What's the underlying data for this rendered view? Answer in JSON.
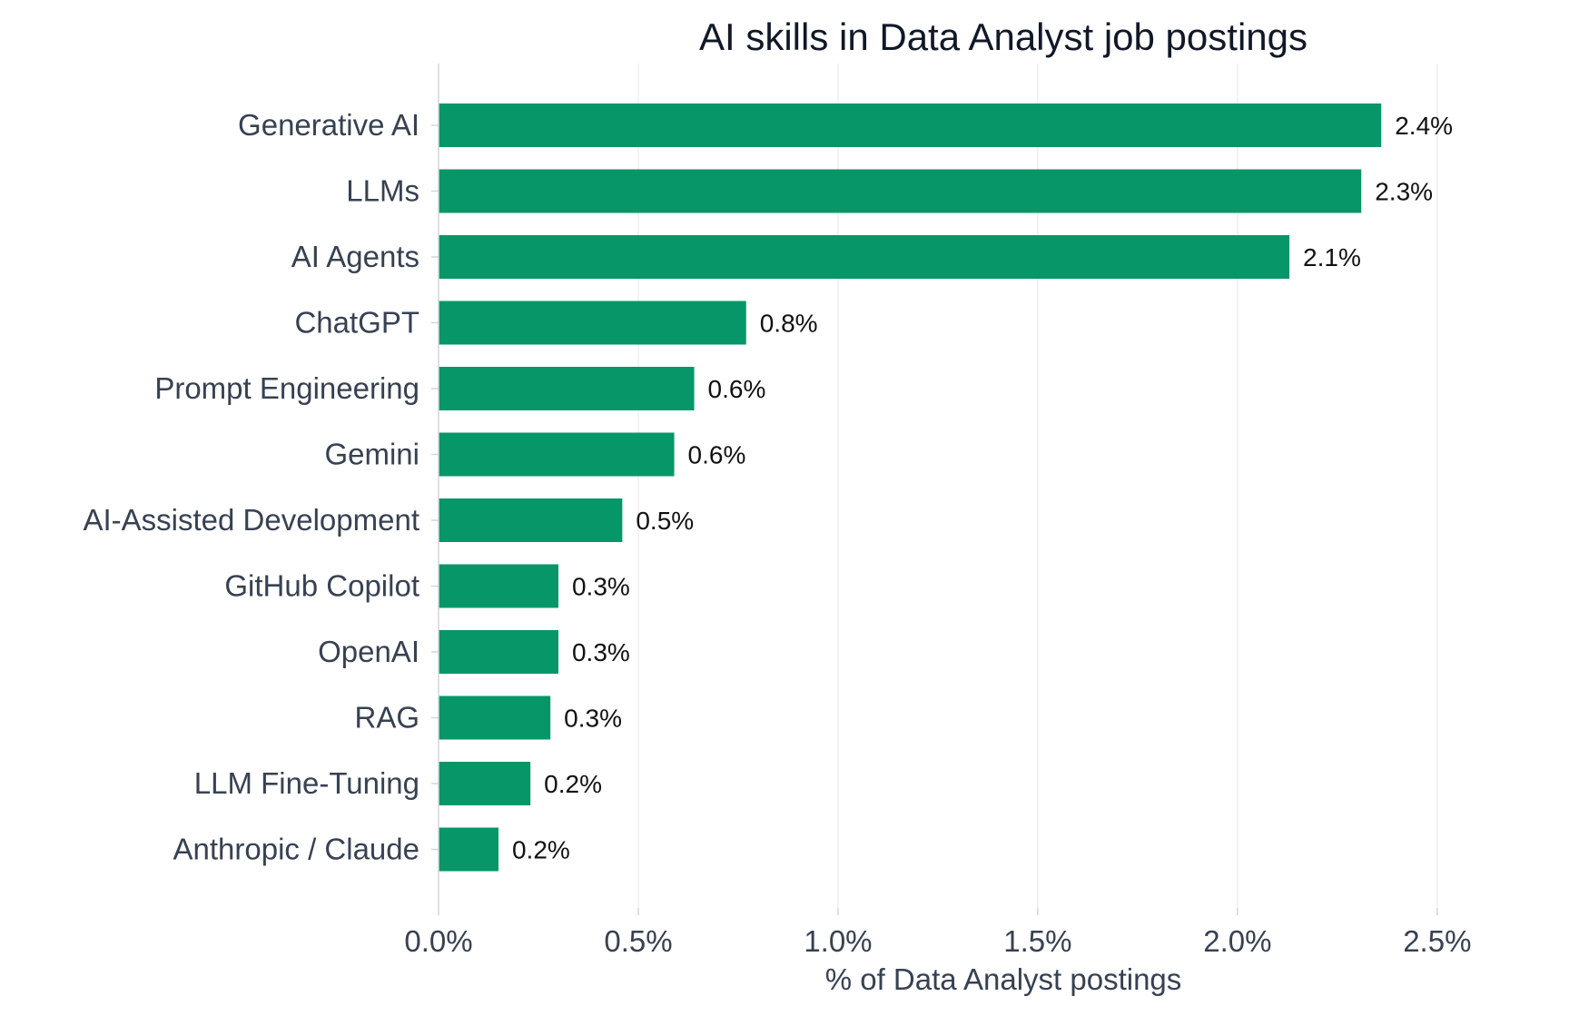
{
  "chart_data": {
    "type": "bar",
    "orientation": "horizontal",
    "title": "AI skills in Data Analyst job postings",
    "xlabel": "% of Data Analyst postings",
    "ylabel": "",
    "categories": [
      "Generative AI",
      "LLMs",
      "AI Agents",
      "ChatGPT",
      "Prompt Engineering",
      "Gemini",
      "AI-Assisted Development",
      "GitHub Copilot",
      "OpenAI",
      "RAG",
      "LLM Fine-Tuning",
      "Anthropic / Claude"
    ],
    "values": [
      2.36,
      2.31,
      2.13,
      0.77,
      0.64,
      0.59,
      0.46,
      0.3,
      0.3,
      0.28,
      0.23,
      0.15
    ],
    "data_labels": [
      "2.4%",
      "2.3%",
      "2.1%",
      "0.8%",
      "0.6%",
      "0.6%",
      "0.5%",
      "0.3%",
      "0.3%",
      "0.3%",
      "0.2%",
      "0.2%"
    ],
    "xlim": [
      0,
      2.83
    ],
    "x_ticks": [
      0,
      0.5,
      1.0,
      1.5,
      2.0,
      2.5
    ],
    "x_tick_labels": [
      "0.0%",
      "0.5%",
      "1.0%",
      "1.5%",
      "2.0%",
      "2.5%"
    ],
    "grid": "vertical",
    "legend": "none",
    "colors": {
      "bar": "#069668",
      "grid": "#eeeeee",
      "axis": "#d1d5db",
      "text": "#374151",
      "title": "#111827",
      "data_label": "#111111"
    }
  }
}
